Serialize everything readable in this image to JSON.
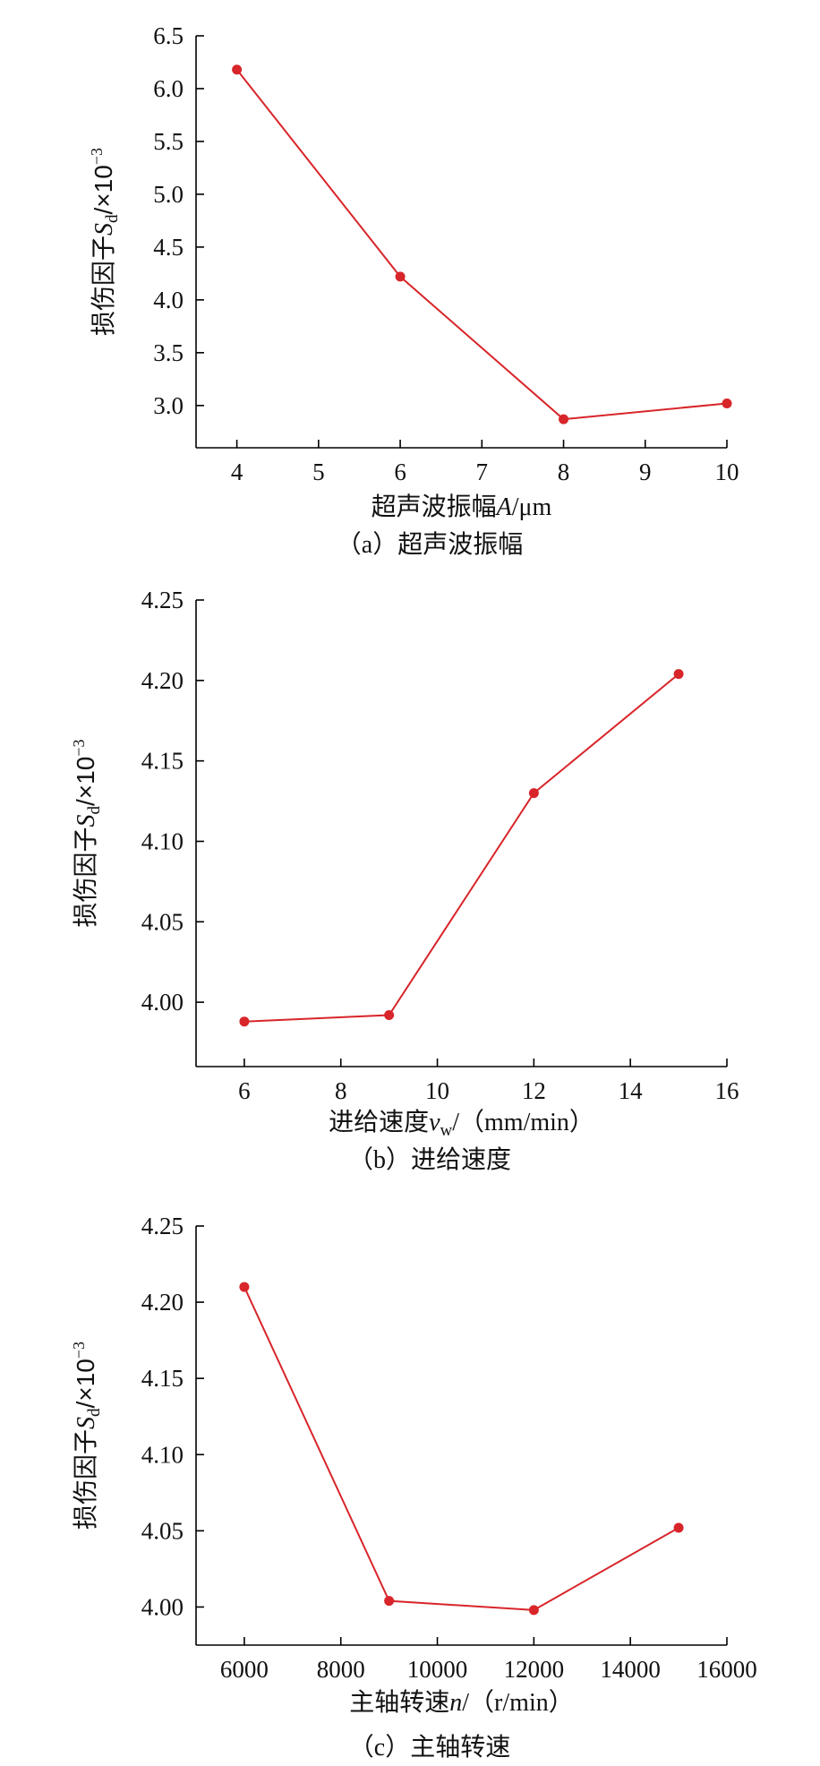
{
  "chart_data": [
    {
      "type": "line",
      "caption": "（a）超声波振幅",
      "ylabel": "损伤因子S",
      "ylabel_sub": "d",
      "ylabel_unit": "/×10",
      "ylabel_sup": "−3",
      "xlabel": "超声波振幅",
      "xlabel_var": "A",
      "xlabel_unit": "/μm",
      "xlim": [
        3.5,
        10
      ],
      "ylim": [
        2.6,
        6.5
      ],
      "xticks": [
        "4",
        "5",
        "6",
        "7",
        "8",
        "9",
        "10"
      ],
      "yticks": [
        "3.0",
        "3.5",
        "4.0",
        "4.5",
        "5.0",
        "5.5",
        "6.0",
        "6.5"
      ],
      "x": [
        4,
        6,
        8,
        10
      ],
      "y": [
        6.18,
        4.22,
        2.87,
        3.02
      ],
      "color": "#d8252a"
    },
    {
      "type": "line",
      "caption": "（b）进给速度",
      "ylabel": "损伤因子S",
      "ylabel_sub": "d",
      "ylabel_unit": "/×10",
      "ylabel_sup": "−3",
      "xlabel": "进给速度",
      "xlabel_var": "v",
      "xlabel_var_sub": "w",
      "xlabel_unit": "/（mm/min）",
      "xlim": [
        5,
        16
      ],
      "ylim": [
        3.96,
        4.25
      ],
      "xticks": [
        "6",
        "8",
        "10",
        "12",
        "14",
        "16"
      ],
      "yticks": [
        "4.00",
        "4.05",
        "4.10",
        "4.15",
        "4.20",
        "4.25"
      ],
      "x": [
        6,
        9,
        12,
        15
      ],
      "y": [
        3.988,
        3.992,
        4.13,
        4.204
      ],
      "color": "#d8252a"
    },
    {
      "type": "line",
      "caption": "（c）主轴转速",
      "ylabel": "损伤因子S",
      "ylabel_sub": "d",
      "ylabel_unit": "/×10",
      "ylabel_sup": "−3",
      "xlabel": "主轴转速",
      "xlabel_var": "n",
      "xlabel_unit": "/（r/min）",
      "xlim": [
        5000,
        16000
      ],
      "ylim": [
        3.975,
        4.25
      ],
      "xticks": [
        "6000",
        "8000",
        "10000",
        "12000",
        "14000",
        "16000"
      ],
      "yticks": [
        "4.00",
        "4.05",
        "4.10",
        "4.15",
        "4.20",
        "4.25"
      ],
      "x": [
        6000,
        9000,
        12000,
        15000
      ],
      "y": [
        4.21,
        4.004,
        3.998,
        4.052
      ],
      "color": "#d8252a"
    }
  ]
}
